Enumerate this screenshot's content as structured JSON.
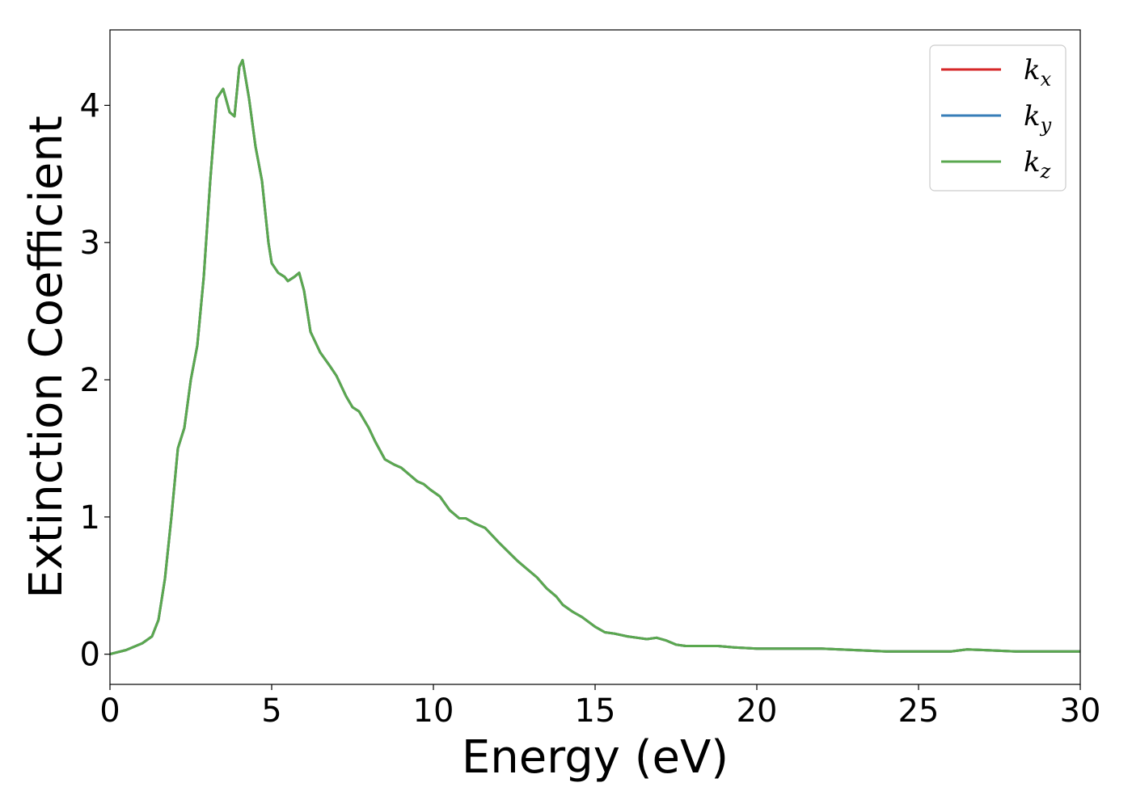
{
  "chart_data": {
    "type": "line",
    "title": "",
    "xlabel": "Energy (eV)",
    "ylabel": "Extinction Coefficient",
    "xlim": [
      0,
      30
    ],
    "ylim": [
      -0.22,
      4.55
    ],
    "xticks": [
      0,
      5,
      10,
      15,
      20,
      25,
      30
    ],
    "xtick_labels": [
      "0",
      "5",
      "10",
      "15",
      "20",
      "25",
      "30"
    ],
    "yticks": [
      0,
      1,
      2,
      3,
      4
    ],
    "ytick_labels": [
      "0",
      "1",
      "2",
      "3",
      "4"
    ],
    "grid": false,
    "legend_position": "top-right",
    "x": [
      0,
      0.5,
      1.0,
      1.3,
      1.5,
      1.7,
      1.9,
      2.1,
      2.3,
      2.5,
      2.7,
      2.9,
      3.1,
      3.3,
      3.5,
      3.7,
      3.85,
      4.0,
      4.1,
      4.3,
      4.5,
      4.7,
      4.9,
      5.0,
      5.2,
      5.4,
      5.5,
      5.7,
      5.85,
      6.0,
      6.2,
      6.5,
      6.8,
      7.0,
      7.3,
      7.5,
      7.7,
      8.0,
      8.2,
      8.5,
      8.8,
      9.0,
      9.3,
      9.5,
      9.7,
      9.9,
      10.2,
      10.5,
      10.8,
      11.0,
      11.3,
      11.6,
      12.0,
      12.3,
      12.6,
      12.9,
      13.2,
      13.5,
      13.8,
      14.0,
      14.3,
      14.6,
      15.0,
      15.3,
      15.6,
      16.0,
      16.3,
      16.6,
      16.9,
      17.2,
      17.5,
      17.8,
      18.3,
      18.8,
      19.3,
      20.0,
      21.0,
      22.0,
      23.0,
      24.0,
      25.0,
      26.0,
      26.5,
      27.0,
      28.0,
      29.0,
      30.0
    ],
    "series": [
      {
        "name": "k_x",
        "label_base": "k",
        "label_sub": "x",
        "color": "#d62728",
        "values": [
          0,
          0.03,
          0.08,
          0.13,
          0.25,
          0.55,
          1.0,
          1.5,
          1.65,
          2.0,
          2.25,
          2.75,
          3.45,
          4.05,
          4.12,
          3.95,
          3.92,
          4.28,
          4.33,
          4.05,
          3.7,
          3.45,
          3.0,
          2.85,
          2.78,
          2.75,
          2.72,
          2.75,
          2.78,
          2.65,
          2.35,
          2.2,
          2.1,
          2.03,
          1.88,
          1.8,
          1.77,
          1.65,
          1.55,
          1.42,
          1.38,
          1.36,
          1.3,
          1.26,
          1.24,
          1.2,
          1.15,
          1.05,
          0.99,
          0.99,
          0.95,
          0.92,
          0.82,
          0.75,
          0.68,
          0.62,
          0.56,
          0.48,
          0.42,
          0.36,
          0.31,
          0.27,
          0.2,
          0.16,
          0.15,
          0.13,
          0.12,
          0.11,
          0.12,
          0.1,
          0.07,
          0.06,
          0.06,
          0.06,
          0.05,
          0.04,
          0.04,
          0.04,
          0.03,
          0.02,
          0.02,
          0.02,
          0.035,
          0.03,
          0.02,
          0.02,
          0.02
        ]
      },
      {
        "name": "k_y",
        "label_base": "k",
        "label_sub": "y",
        "color": "#377eb8",
        "values": [
          0,
          0.03,
          0.08,
          0.13,
          0.25,
          0.55,
          1.0,
          1.5,
          1.65,
          2.0,
          2.25,
          2.75,
          3.45,
          4.05,
          4.12,
          3.95,
          3.92,
          4.28,
          4.33,
          4.05,
          3.7,
          3.45,
          3.0,
          2.85,
          2.78,
          2.75,
          2.72,
          2.75,
          2.78,
          2.65,
          2.35,
          2.2,
          2.1,
          2.03,
          1.88,
          1.8,
          1.77,
          1.65,
          1.55,
          1.42,
          1.38,
          1.36,
          1.3,
          1.26,
          1.24,
          1.2,
          1.15,
          1.05,
          0.99,
          0.99,
          0.95,
          0.92,
          0.82,
          0.75,
          0.68,
          0.62,
          0.56,
          0.48,
          0.42,
          0.36,
          0.31,
          0.27,
          0.2,
          0.16,
          0.15,
          0.13,
          0.12,
          0.11,
          0.12,
          0.1,
          0.07,
          0.06,
          0.06,
          0.06,
          0.05,
          0.04,
          0.04,
          0.04,
          0.03,
          0.02,
          0.02,
          0.02,
          0.035,
          0.03,
          0.02,
          0.02,
          0.02
        ]
      },
      {
        "name": "k_z",
        "label_base": "k",
        "label_sub": "z",
        "color": "#5aa84f",
        "values": [
          0,
          0.03,
          0.08,
          0.13,
          0.25,
          0.55,
          1.0,
          1.5,
          1.65,
          2.0,
          2.25,
          2.75,
          3.45,
          4.05,
          4.12,
          3.95,
          3.92,
          4.28,
          4.33,
          4.05,
          3.7,
          3.45,
          3.0,
          2.85,
          2.78,
          2.75,
          2.72,
          2.75,
          2.78,
          2.65,
          2.35,
          2.2,
          2.1,
          2.03,
          1.88,
          1.8,
          1.77,
          1.65,
          1.55,
          1.42,
          1.38,
          1.36,
          1.3,
          1.26,
          1.24,
          1.2,
          1.15,
          1.05,
          0.99,
          0.99,
          0.95,
          0.92,
          0.82,
          0.75,
          0.68,
          0.62,
          0.56,
          0.48,
          0.42,
          0.36,
          0.31,
          0.27,
          0.2,
          0.16,
          0.15,
          0.13,
          0.12,
          0.11,
          0.12,
          0.1,
          0.07,
          0.06,
          0.06,
          0.06,
          0.05,
          0.04,
          0.04,
          0.04,
          0.03,
          0.02,
          0.02,
          0.02,
          0.035,
          0.03,
          0.02,
          0.02,
          0.02
        ]
      }
    ]
  }
}
